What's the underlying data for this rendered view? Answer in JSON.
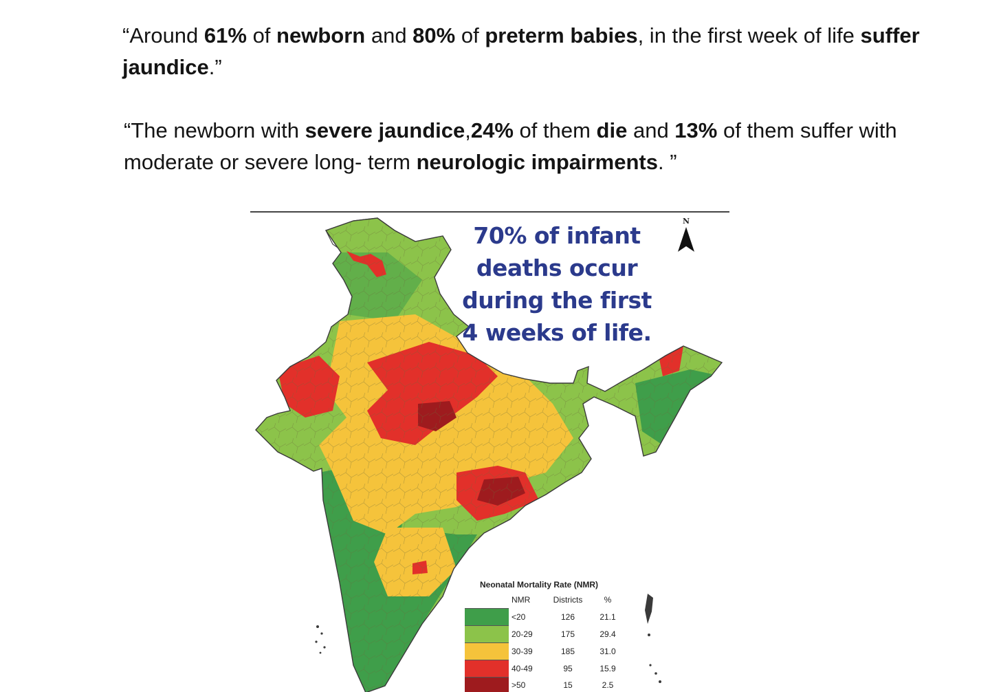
{
  "quote1": {
    "parts": [
      "“Around ",
      "61%",
      " of ",
      "newborn",
      " and ",
      "80%",
      " of ",
      "preterm babies",
      ", in the first week of life ",
      "suffer jaundice",
      ".”"
    ]
  },
  "quote2": {
    "parts": [
      "“The newborn with ",
      "severe jaundice",
      ",",
      "24%",
      " of them ",
      "die",
      " and ",
      "13%",
      " of them suffer with moderate or severe long- term ",
      "neurologic impairments",
      ". ”"
    ]
  },
  "map": {
    "headline": "70% of infant deaths occur during the first 4 weeks of life.",
    "north_label": "N",
    "legend": {
      "title": "Neonatal Mortality Rate (NMR)",
      "headers": [
        "NMR",
        "Districts",
        "%"
      ],
      "rows": [
        {
          "nmr": "<20",
          "districts": "126",
          "percent": "21.1",
          "color": "#3f9e4a"
        },
        {
          "nmr": "20-29",
          "districts": "175",
          "percent": "29.4",
          "color": "#8cc34a"
        },
        {
          "nmr": "30-39",
          "districts": "185",
          "percent": "31.0",
          "color": "#f5c33b"
        },
        {
          "nmr": "40-49",
          "districts": "95",
          "percent": "15.9",
          "color": "#e2302a"
        },
        {
          "nmr": ">50",
          "districts": "15",
          "percent": "2.5",
          "color": "#9e1b1e"
        }
      ]
    }
  }
}
